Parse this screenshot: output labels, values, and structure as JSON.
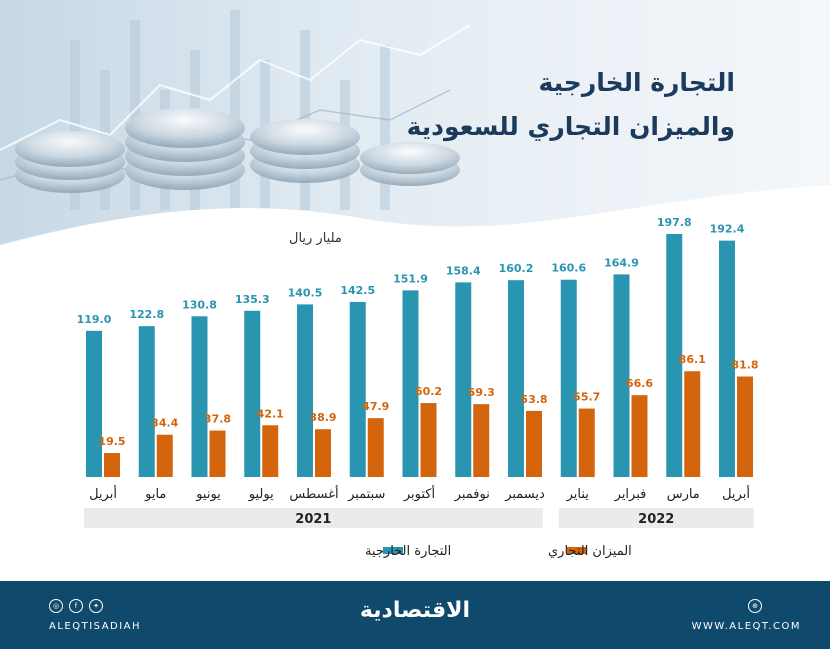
{
  "title_line1": "التجارة الخارجية",
  "title_line2": "والميزان التجاري للسعودية",
  "brand": "الاقتصادية",
  "footer_handle": "ALEQTISADIAH",
  "footer_site": "WWW.ALEQT.COM",
  "icons": {
    "instagram": "instagram-icon",
    "facebook": "facebook-icon",
    "twitter": "twitter-icon",
    "web": "web-icon"
  },
  "colors": {
    "trade": "#2a95b0",
    "balance": "#d4650c",
    "navy": "#0f4a6c",
    "title": "#1b3a5c",
    "year_band": "#ebebeb"
  },
  "chart_data": {
    "type": "bar",
    "unit_label": "مليار ريال",
    "categories": [
      "أبريل",
      "مايو",
      "يونيو",
      "يوليو",
      "أغسطس",
      "سبتمبر",
      "أكتوبر",
      "نوفمبر",
      "ديسمبر",
      "يناير",
      "فبراير",
      "مارس",
      "أبريل"
    ],
    "series": [
      {
        "name": "التجارة الخارجية",
        "values": [
          119.0,
          122.8,
          130.8,
          135.3,
          140.5,
          142.5,
          151.9,
          158.4,
          160.2,
          160.6,
          164.9,
          197.8,
          192.4
        ]
      },
      {
        "name": "الميزان التجاري",
        "values": [
          19.5,
          34.4,
          37.8,
          42.1,
          38.9,
          47.9,
          60.2,
          59.3,
          53.8,
          55.7,
          66.6,
          86.1,
          81.8
        ]
      }
    ],
    "year_groups": [
      {
        "label": "2021",
        "count": 9
      },
      {
        "label": "2022",
        "count": 4
      }
    ],
    "ylim": [
      0,
      197.8
    ],
    "legend_position": "bottom"
  }
}
